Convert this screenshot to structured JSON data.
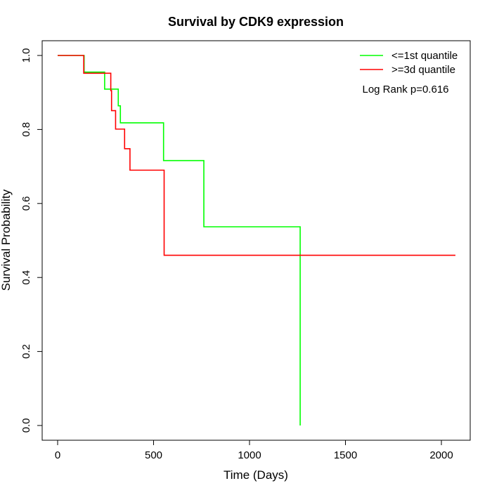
{
  "chart_data": {
    "type": "line",
    "title": "Survival by CDK9 expression",
    "xlabel": "Time (Days)",
    "ylabel": "Survival Probability",
    "xlim": [
      0,
      2073
    ],
    "ylim": [
      0,
      1
    ],
    "xticks": [
      0,
      500,
      1000,
      1500,
      2000
    ],
    "yticks": [
      "0.0",
      "0.2",
      "0.4",
      "0.6",
      "0.8",
      "1.0"
    ],
    "grid": false,
    "legend_position": "top-right",
    "annotation": "Log Rank p=0.616",
    "series": [
      {
        "name": "<=1st quantile",
        "color": "#00ff00",
        "step": [
          [
            0,
            1.0
          ],
          [
            138,
            0.955
          ],
          [
            245,
            0.909
          ],
          [
            316,
            0.864
          ],
          [
            327,
            0.818
          ],
          [
            552,
            0.716
          ],
          [
            762,
            0.537
          ],
          [
            1264,
            0.0
          ]
        ],
        "end": 1264
      },
      {
        "name": ">=3d quantile",
        "color": "#ff0000",
        "step": [
          [
            0,
            1.0
          ],
          [
            136,
            0.952
          ],
          [
            277,
            0.905
          ],
          [
            281,
            0.851
          ],
          [
            302,
            0.801
          ],
          [
            349,
            0.748
          ],
          [
            377,
            0.69
          ],
          [
            555,
            0.46
          ]
        ],
        "end": 2073
      }
    ]
  }
}
